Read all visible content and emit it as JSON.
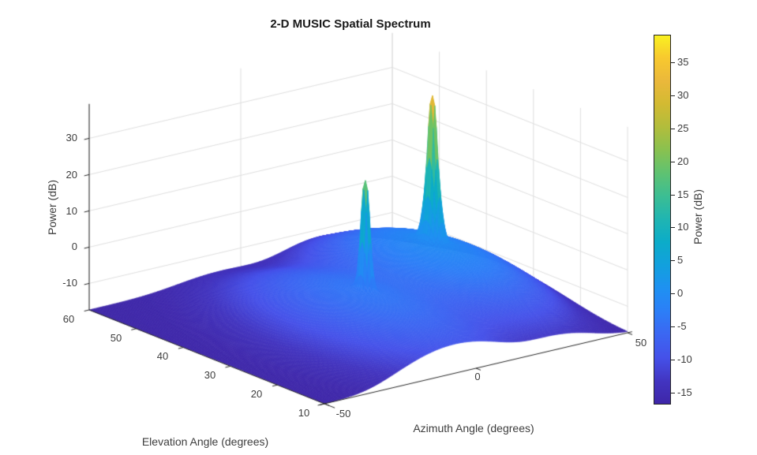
{
  "figure": {
    "background": "#ffffff"
  },
  "chart_data": {
    "type": "surface3d",
    "title": "2-D MUSIC Spatial Spectrum",
    "x_axis": {
      "label": "Azimuth Angle (degrees)",
      "range": [
        -50,
        50
      ],
      "ticks": [
        -50,
        0,
        50
      ],
      "tick_labels": [
        "-50",
        "0",
        "50"
      ]
    },
    "y_axis": {
      "label": "Elevation Angle (degrees)",
      "range": [
        10,
        60
      ],
      "ticks": [
        60,
        50,
        40,
        30,
        20,
        10
      ],
      "tick_labels": [
        "60",
        "50",
        "40",
        "30",
        "20",
        "10"
      ]
    },
    "z_axis": {
      "label": "Power (dB)",
      "range": [
        -17.3,
        39.5
      ],
      "ticks": [
        30,
        20,
        10,
        0,
        -10
      ],
      "tick_labels": [
        "30",
        "20",
        "10",
        "0",
        "-10"
      ]
    },
    "colorbar": {
      "label": "Power (dB)",
      "colormap": "parula",
      "clim": [
        -17.3,
        39.3
      ],
      "ticks": [
        35,
        30,
        25,
        20,
        15,
        10,
        5,
        0,
        -5,
        -10,
        -15
      ],
      "tick_labels": [
        "35",
        "30",
        "25",
        "20",
        "15",
        "10",
        "5",
        "0",
        "-5",
        "-10",
        "-15"
      ],
      "stops": [
        {
          "t": 0.0,
          "color": "#3e26a8"
        },
        {
          "t": 0.06,
          "color": "#4234c0"
        },
        {
          "t": 0.125,
          "color": "#4551e9"
        },
        {
          "t": 0.19,
          "color": "#3b67f2"
        },
        {
          "t": 0.25,
          "color": "#2c7ef7"
        },
        {
          "t": 0.31,
          "color": "#1f90f2"
        },
        {
          "t": 0.375,
          "color": "#12a0de"
        },
        {
          "t": 0.44,
          "color": "#0cacc8"
        },
        {
          "t": 0.5,
          "color": "#1fb5b2"
        },
        {
          "t": 0.56,
          "color": "#3abd95"
        },
        {
          "t": 0.625,
          "color": "#5ec272"
        },
        {
          "t": 0.69,
          "color": "#8ac14f"
        },
        {
          "t": 0.75,
          "color": "#b1bd3c"
        },
        {
          "t": 0.815,
          "color": "#d3ba32"
        },
        {
          "t": 0.875,
          "color": "#eab83b"
        },
        {
          "t": 0.94,
          "color": "#f8c92e"
        },
        {
          "t": 1.0,
          "color": "#f9f121"
        }
      ]
    },
    "surface": {
      "noise_floor_db": -17.3,
      "azimuth_step_deg": 0.5,
      "elevation_step_deg": 0.5,
      "peaks": [
        {
          "azimuth_deg": 26,
          "elevation_deg": 36,
          "power_db": 39.3,
          "core_width": 0.02,
          "skirt_amplitude": 0.8,
          "skirt_sigma_deg": 10
        },
        {
          "azimuth_deg": -7,
          "elevation_deg": 29,
          "power_db": 26.0,
          "core_width": 0.02,
          "skirt_amplitude": 0.35,
          "skirt_sigma_deg": 12
        }
      ]
    },
    "grid": true,
    "view": "matlab-default-3d"
  }
}
